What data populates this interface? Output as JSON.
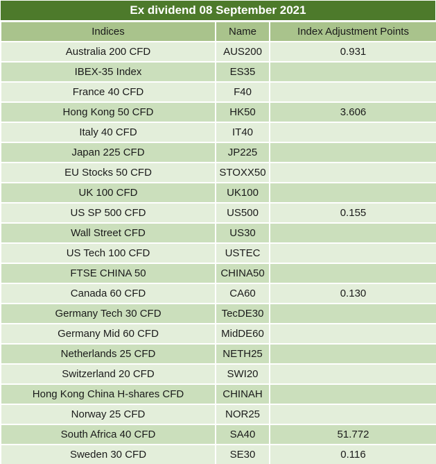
{
  "title": "Ex dividend 08 September 2021",
  "colors": {
    "title_bg": "#4d7a2b",
    "title_text": "#ffffff",
    "header_row_bg": "#a9c38c",
    "row_light_bg": "#e3eeda",
    "row_dark_bg": "#cbdfbc",
    "cell_text": "#1a1a1a",
    "grid_lines": "#ffffff"
  },
  "columns": {
    "indices": "Indices",
    "name": "Name",
    "points": "Index Adjustment Points"
  },
  "rows": [
    {
      "indices": "Australia 200 CFD",
      "name": "AUS200",
      "points": "0.931"
    },
    {
      "indices": "IBEX-35 Index",
      "name": "ES35",
      "points": ""
    },
    {
      "indices": "France 40 CFD",
      "name": "F40",
      "points": ""
    },
    {
      "indices": "Hong Kong 50 CFD",
      "name": "HK50",
      "points": "3.606"
    },
    {
      "indices": "Italy 40 CFD",
      "name": "IT40",
      "points": ""
    },
    {
      "indices": "Japan 225 CFD",
      "name": "JP225",
      "points": ""
    },
    {
      "indices": "EU Stocks 50 CFD",
      "name": "STOXX50",
      "points": ""
    },
    {
      "indices": "UK 100 CFD",
      "name": "UK100",
      "points": ""
    },
    {
      "indices": "US SP 500 CFD",
      "name": "US500",
      "points": "0.155"
    },
    {
      "indices": "Wall Street CFD",
      "name": "US30",
      "points": ""
    },
    {
      "indices": "US Tech 100 CFD",
      "name": "USTEC",
      "points": ""
    },
    {
      "indices": "FTSE CHINA 50",
      "name": "CHINA50",
      "points": ""
    },
    {
      "indices": "Canada 60 CFD",
      "name": "CA60",
      "points": "0.130"
    },
    {
      "indices": "Germany Tech 30 CFD",
      "name": "TecDE30",
      "points": ""
    },
    {
      "indices": "Germany Mid 60 CFD",
      "name": "MidDE60",
      "points": ""
    },
    {
      "indices": "Netherlands 25 CFD",
      "name": "NETH25",
      "points": ""
    },
    {
      "indices": "Switzerland 20 CFD",
      "name": "SWI20",
      "points": ""
    },
    {
      "indices": "Hong Kong China H-shares CFD",
      "name": "CHINAH",
      "points": ""
    },
    {
      "indices": "Norway 25 CFD",
      "name": "NOR25",
      "points": ""
    },
    {
      "indices": "South Africa 40 CFD",
      "name": "SA40",
      "points": "51.772"
    },
    {
      "indices": "Sweden 30 CFD",
      "name": "SE30",
      "points": "0.116"
    }
  ]
}
